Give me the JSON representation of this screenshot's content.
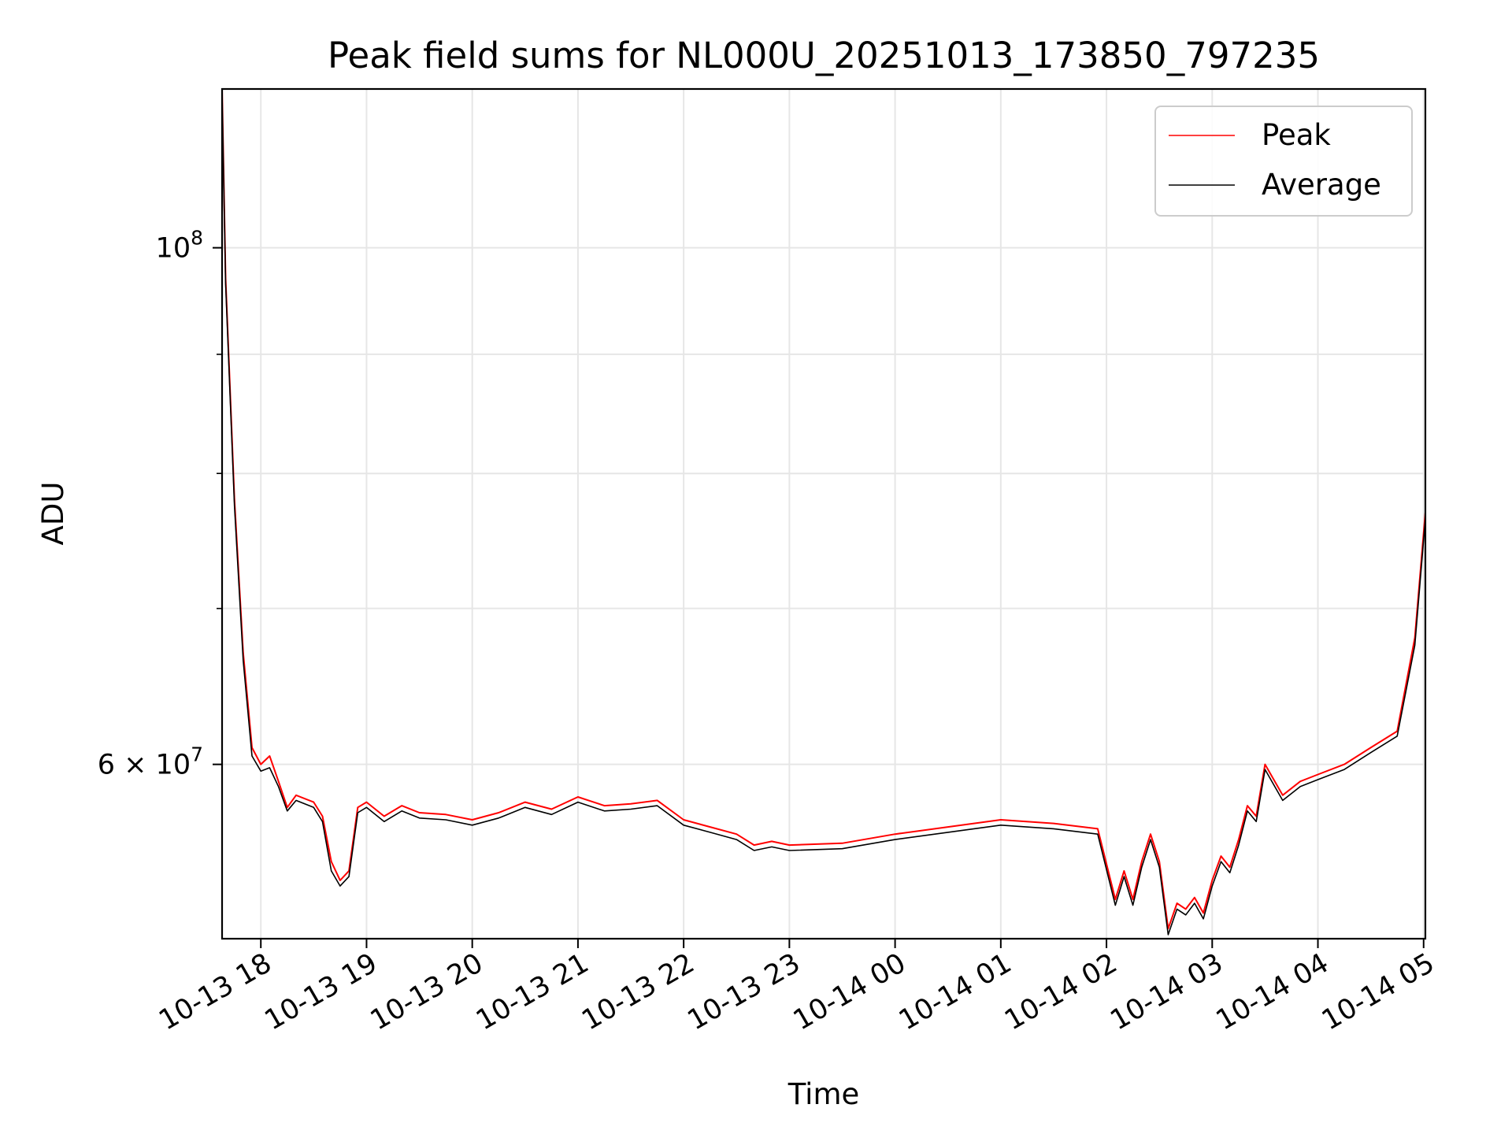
{
  "chart_data": {
    "type": "line",
    "title": "Peak field sums for NL000U_20251013_173850_797235",
    "xlabel": "Time",
    "ylabel": "ADU",
    "y_scale": "log",
    "xlim": [
      "2025-10-13 17:38",
      "2025-10-14 05:01"
    ],
    "ylim": [
      50500000,
      117000000
    ],
    "x_tick_labels": [
      "10-13 18",
      "10-13 19",
      "10-13 20",
      "10-13 21",
      "10-13 22",
      "10-13 23",
      "10-14 00",
      "10-14 01",
      "10-14 02",
      "10-14 03",
      "10-14 04",
      "10-14 05"
    ],
    "x_ticks": [
      "2025-10-13 18:00",
      "2025-10-13 19:00",
      "2025-10-13 20:00",
      "2025-10-13 21:00",
      "2025-10-13 22:00",
      "2025-10-13 23:00",
      "2025-10-14 00:00",
      "2025-10-14 01:00",
      "2025-10-14 02:00",
      "2025-10-14 03:00",
      "2025-10-14 04:00",
      "2025-10-14 05:00"
    ],
    "y_major_ticks": [
      {
        "value": 100000000,
        "base": "10",
        "exp": "8"
      },
      {
        "value": 60000000,
        "coef": "6",
        "base": "10",
        "exp": "7"
      }
    ],
    "y_minor_ticks": [
      50000000,
      70000000,
      80000000,
      90000000
    ],
    "grid": true,
    "legend_position": "top-right",
    "series": [
      {
        "name": "Peak",
        "color": "#ff0000",
        "x": [
          "2025-10-13 17:38",
          "2025-10-13 17:40",
          "2025-10-13 17:45",
          "2025-10-13 17:50",
          "2025-10-13 17:55",
          "2025-10-13 18:00",
          "2025-10-13 18:05",
          "2025-10-13 18:10",
          "2025-10-13 18:15",
          "2025-10-13 18:20",
          "2025-10-13 18:30",
          "2025-10-13 18:35",
          "2025-10-13 18:40",
          "2025-10-13 18:45",
          "2025-10-13 18:50",
          "2025-10-13 18:55",
          "2025-10-13 19:00",
          "2025-10-13 19:10",
          "2025-10-13 19:20",
          "2025-10-13 19:30",
          "2025-10-13 19:45",
          "2025-10-13 20:00",
          "2025-10-13 20:15",
          "2025-10-13 20:30",
          "2025-10-13 20:45",
          "2025-10-13 21:00",
          "2025-10-13 21:15",
          "2025-10-13 21:30",
          "2025-10-13 21:45",
          "2025-10-13 22:00",
          "2025-10-13 22:15",
          "2025-10-13 22:30",
          "2025-10-13 22:40",
          "2025-10-13 22:50",
          "2025-10-13 23:00",
          "2025-10-13 23:30",
          "2025-10-14 00:00",
          "2025-10-14 00:30",
          "2025-10-14 01:00",
          "2025-10-14 01:30",
          "2025-10-14 01:55",
          "2025-10-14 02:05",
          "2025-10-14 02:10",
          "2025-10-14 02:15",
          "2025-10-14 02:20",
          "2025-10-14 02:25",
          "2025-10-14 02:30",
          "2025-10-14 02:35",
          "2025-10-14 02:40",
          "2025-10-14 02:45",
          "2025-10-14 02:50",
          "2025-10-14 02:55",
          "2025-10-14 03:00",
          "2025-10-14 03:05",
          "2025-10-14 03:10",
          "2025-10-14 03:15",
          "2025-10-14 03:20",
          "2025-10-14 03:25",
          "2025-10-14 03:30",
          "2025-10-14 03:40",
          "2025-10-14 03:50",
          "2025-10-14 04:00",
          "2025-10-14 04:15",
          "2025-10-14 04:30",
          "2025-10-14 04:45",
          "2025-10-14 04:55",
          "2025-10-14 05:01"
        ],
        "values": [
          117000000,
          97000000,
          78000000,
          67000000,
          61000000,
          60000000,
          60500000,
          59000000,
          57500000,
          58200000,
          57800000,
          57000000,
          54500000,
          53500000,
          54000000,
          57500000,
          57800000,
          57000000,
          57600000,
          57200000,
          57100000,
          56800000,
          57200000,
          57800000,
          57400000,
          58100000,
          57600000,
          57700000,
          57900000,
          56800000,
          56400000,
          56000000,
          55400000,
          55600000,
          55400000,
          55500000,
          56000000,
          56400000,
          56800000,
          56600000,
          56300000,
          52500000,
          54000000,
          52500000,
          54500000,
          56000000,
          54500000,
          51000000,
          52300000,
          52000000,
          52600000,
          51800000,
          53500000,
          54800000,
          54200000,
          55700000,
          57600000,
          57000000,
          60000000,
          58200000,
          59000000,
          59400000,
          60000000,
          61000000,
          62000000,
          68000000,
          77000000
        ]
      },
      {
        "name": "Average",
        "color": "#000000",
        "x": [
          "2025-10-13 17:38",
          "2025-10-13 17:40",
          "2025-10-13 17:45",
          "2025-10-13 17:50",
          "2025-10-13 17:55",
          "2025-10-13 18:00",
          "2025-10-13 18:05",
          "2025-10-13 18:10",
          "2025-10-13 18:15",
          "2025-10-13 18:20",
          "2025-10-13 18:30",
          "2025-10-13 18:35",
          "2025-10-13 18:40",
          "2025-10-13 18:45",
          "2025-10-13 18:50",
          "2025-10-13 18:55",
          "2025-10-13 19:00",
          "2025-10-13 19:10",
          "2025-10-13 19:20",
          "2025-10-13 19:30",
          "2025-10-13 19:45",
          "2025-10-13 20:00",
          "2025-10-13 20:15",
          "2025-10-13 20:30",
          "2025-10-13 20:45",
          "2025-10-13 21:00",
          "2025-10-13 21:15",
          "2025-10-13 21:30",
          "2025-10-13 21:45",
          "2025-10-13 22:00",
          "2025-10-13 22:15",
          "2025-10-13 22:30",
          "2025-10-13 22:40",
          "2025-10-13 22:50",
          "2025-10-13 23:00",
          "2025-10-13 23:30",
          "2025-10-14 00:00",
          "2025-10-14 00:30",
          "2025-10-14 01:00",
          "2025-10-14 01:30",
          "2025-10-14 01:55",
          "2025-10-14 02:05",
          "2025-10-14 02:10",
          "2025-10-14 02:15",
          "2025-10-14 02:20",
          "2025-10-14 02:25",
          "2025-10-14 02:30",
          "2025-10-14 02:35",
          "2025-10-14 02:40",
          "2025-10-14 02:45",
          "2025-10-14 02:50",
          "2025-10-14 02:55",
          "2025-10-14 03:00",
          "2025-10-14 03:05",
          "2025-10-14 03:10",
          "2025-10-14 03:15",
          "2025-10-14 03:20",
          "2025-10-14 03:25",
          "2025-10-14 03:30",
          "2025-10-14 03:40",
          "2025-10-14 03:50",
          "2025-10-14 04:00",
          "2025-10-14 04:15",
          "2025-10-14 04:30",
          "2025-10-14 04:45",
          "2025-10-14 04:55",
          "2025-10-14 05:01"
        ],
        "values": [
          116500000,
          96500000,
          77500000,
          66500000,
          60500000,
          59600000,
          59800000,
          58700000,
          57300000,
          57900000,
          57500000,
          56700000,
          54000000,
          53200000,
          53700000,
          57200000,
          57500000,
          56700000,
          57300000,
          56900000,
          56800000,
          56500000,
          56900000,
          57500000,
          57100000,
          57800000,
          57300000,
          57400000,
          57600000,
          56500000,
          56100000,
          55700000,
          55100000,
          55300000,
          55100000,
          55200000,
          55700000,
          56100000,
          56500000,
          56300000,
          56000000,
          52200000,
          53700000,
          52200000,
          54200000,
          55700000,
          54200000,
          50700000,
          52000000,
          51700000,
          52300000,
          51500000,
          53200000,
          54500000,
          53900000,
          55400000,
          57300000,
          56700000,
          59700000,
          57900000,
          58700000,
          59100000,
          59700000,
          60700000,
          61700000,
          67500000,
          76500000
        ]
      }
    ]
  }
}
